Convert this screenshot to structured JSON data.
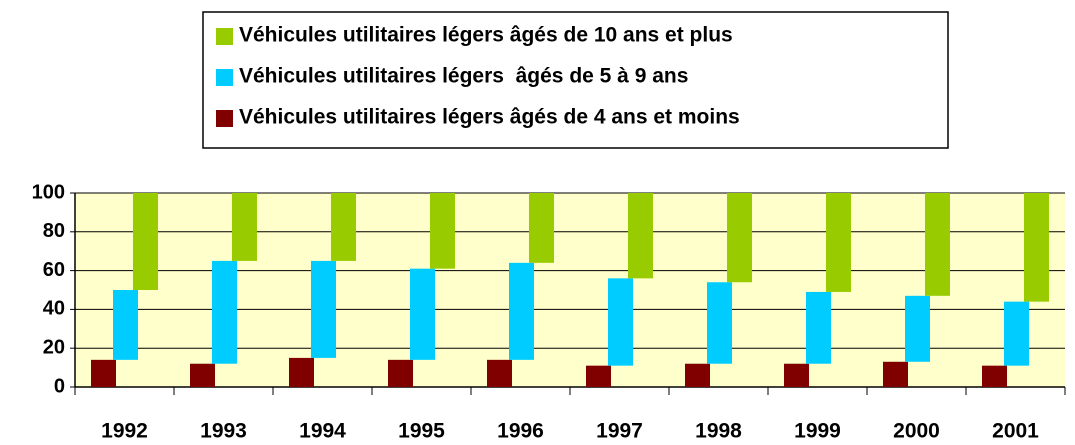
{
  "chart_data": {
    "type": "bar",
    "stacked": true,
    "categories": [
      "1992",
      "1993",
      "1994",
      "1995",
      "1996",
      "1997",
      "1998",
      "1999",
      "2000",
      "2001"
    ],
    "series": [
      {
        "name": "Véhicules utilitaires légers âgés de 4 ans et moins",
        "color": "#800000",
        "values": [
          14,
          12,
          15,
          14,
          14,
          11,
          12,
          12,
          13,
          11
        ]
      },
      {
        "name": "Véhicules utilitaires légers  âgés de 5 à 9 ans",
        "color": "#00ccff",
        "values": [
          36,
          53,
          50,
          47,
          50,
          45,
          42,
          37,
          34,
          33
        ]
      },
      {
        "name": "Véhicules utilitaires légers âgés de 10 ans et plus",
        "color": "#99cc00",
        "values": [
          50,
          35,
          35,
          39,
          36,
          44,
          46,
          51,
          53,
          56
        ]
      }
    ],
    "ylim": [
      0,
      100
    ],
    "yticks": [
      0,
      20,
      40,
      60,
      80,
      100
    ],
    "grid": true,
    "legend": "top"
  }
}
